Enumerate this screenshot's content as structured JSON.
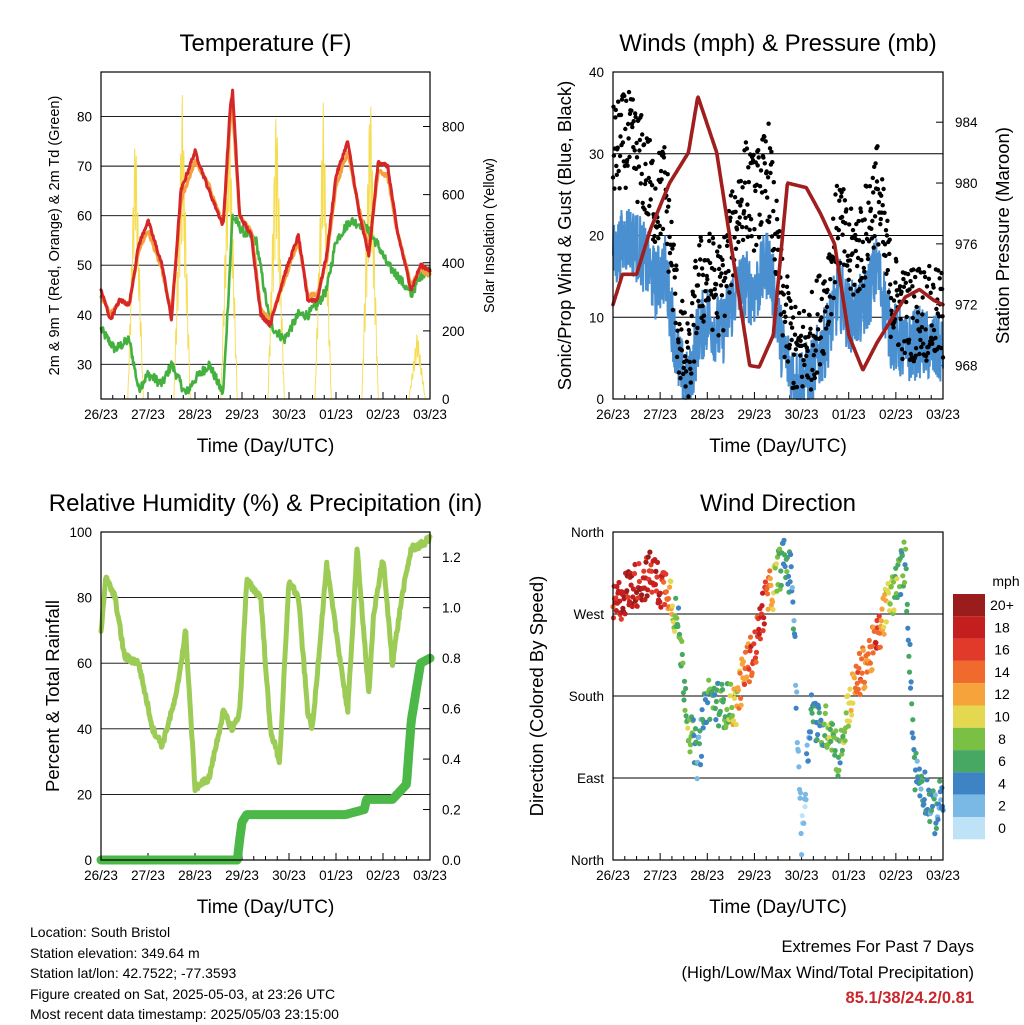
{
  "x_ticks": [
    "26/23",
    "27/23",
    "28/23",
    "29/23",
    "30/23",
    "01/23",
    "02/23",
    "03/23"
  ],
  "colors": {
    "temp2m": "#d62728",
    "temp9m": "#f5a040",
    "dewpoint": "#44b040",
    "solar": "#f6dc50",
    "wind": "#4a90d0",
    "gust": "#000000",
    "pressure": "#a01e1e",
    "rh": "#9ccc55",
    "precip": "#4bb848",
    "extremes": "#c8282d"
  },
  "chart_data": [
    {
      "type": "line",
      "title": "Temperature (F)",
      "xlabel": "Time (Day/UTC)",
      "ylabel": "2m & 9m T (Red, Orange) & 2m Td (Green)",
      "y2label": "Solar Insolation (Yellow)",
      "ylim": [
        23,
        89
      ],
      "y2lim": [
        0,
        960
      ],
      "yticks": [
        30,
        40,
        50,
        60,
        70,
        80
      ],
      "y2ticks": [
        0,
        200,
        400,
        600,
        800
      ],
      "grid": true,
      "series": [
        {
          "name": "2m T",
          "axis": "left",
          "x": [
            0,
            0.2,
            0.4,
            0.6,
            0.8,
            1.0,
            1.3,
            1.5,
            1.7,
            2.0,
            2.3,
            2.6,
            2.75,
            2.8,
            2.95,
            3.2,
            3.4,
            3.6,
            3.9,
            4.2,
            4.4,
            4.6,
            4.8,
            5.0,
            5.25,
            5.5,
            5.7,
            5.9,
            6.1,
            6.3,
            6.6,
            6.8,
            7.0
          ],
          "values": [
            45,
            39,
            43,
            42,
            54,
            59,
            50,
            39,
            65,
            73,
            65,
            58,
            82,
            85,
            60,
            56,
            40,
            38,
            48,
            56,
            43,
            43,
            52,
            68,
            75,
            60,
            52,
            71,
            70,
            57,
            45,
            50,
            49
          ]
        },
        {
          "name": "9m T",
          "axis": "left",
          "x": [
            0,
            0.2,
            0.4,
            0.6,
            0.8,
            1.0,
            1.3,
            1.5,
            1.7,
            2.0,
            2.3,
            2.6,
            2.75,
            2.8,
            2.95,
            3.2,
            3.4,
            3.6,
            3.9,
            4.2,
            4.4,
            4.6,
            4.8,
            5.0,
            5.25,
            5.5,
            5.7,
            5.9,
            6.1,
            6.3,
            6.6,
            6.8,
            7.0
          ],
          "values": [
            44,
            40,
            43,
            42,
            53,
            57,
            49,
            40,
            63,
            71,
            66,
            58,
            79,
            82,
            60,
            57,
            41,
            39,
            47,
            55,
            44,
            44,
            51,
            66,
            73,
            61,
            53,
            69,
            68,
            57,
            46,
            49,
            48
          ]
        },
        {
          "name": "2m Td",
          "axis": "left",
          "x": [
            0,
            0.3,
            0.6,
            0.8,
            1.0,
            1.3,
            1.5,
            1.8,
            2.0,
            2.3,
            2.6,
            2.8,
            3.0,
            3.3,
            3.6,
            3.9,
            4.2,
            4.4,
            4.6,
            4.8,
            5.0,
            5.3,
            5.6,
            5.9,
            6.1,
            6.3,
            6.6,
            6.8,
            7.0
          ],
          "values": [
            37,
            33,
            35,
            25,
            28,
            26,
            30,
            24,
            27,
            30,
            24,
            60,
            57,
            55,
            38,
            35,
            40,
            40,
            42,
            45,
            55,
            59,
            58,
            54,
            50,
            48,
            44,
            48,
            49
          ]
        },
        {
          "name": "Solar Insolation",
          "axis": "right",
          "x": [
            0.57,
            0.73,
            0.9,
            1.55,
            1.73,
            1.9,
            2.55,
            2.73,
            2.9,
            3.55,
            3.73,
            3.9,
            4.55,
            4.73,
            4.9,
            5.55,
            5.73,
            5.9,
            6.55,
            6.73,
            6.9
          ],
          "values": [
            0,
            810,
            0,
            0,
            900,
            0,
            0,
            880,
            0,
            0,
            880,
            0,
            0,
            870,
            0,
            0,
            920,
            0,
            0,
            200,
            0
          ]
        }
      ]
    },
    {
      "type": "line",
      "title": "Winds (mph) & Pressure (mb)",
      "xlabel": "Time (Day/UTC)",
      "ylabel": "Sonic/Prop Wind & Gust (Blue, Black)",
      "y2label": "Station Pressure (Maroon)",
      "ylim": [
        0,
        40
      ],
      "y2lim": [
        965.8,
        987.3
      ],
      "yticks": [
        0,
        10,
        20,
        30,
        40
      ],
      "y2ticks": [
        968,
        972,
        976,
        980,
        984
      ],
      "grid": true,
      "series": [
        {
          "name": "Wind",
          "axis": "left",
          "x": [
            0,
            0.3,
            0.6,
            0.9,
            1.1,
            1.4,
            1.6,
            1.8,
            2.0,
            2.3,
            2.6,
            2.8,
            3.0,
            3.3,
            3.6,
            3.9,
            4.2,
            4.5,
            4.8,
            5.0,
            5.3,
            5.6,
            5.9,
            6.2,
            6.5,
            6.8,
            7.0
          ],
          "values": [
            17,
            20,
            18,
            14,
            16,
            4,
            1,
            8,
            10,
            8,
            13,
            14,
            13,
            17,
            6,
            2,
            3,
            7,
            13,
            10,
            11,
            16,
            8,
            6,
            7,
            6,
            6
          ]
        },
        {
          "name": "Gust",
          "axis": "left",
          "x": [
            0,
            0.3,
            0.6,
            0.9,
            1.1,
            1.4,
            1.6,
            1.8,
            2.0,
            2.3,
            2.6,
            2.8,
            3.0,
            3.3,
            3.6,
            3.9,
            4.2,
            4.5,
            4.8,
            5.0,
            5.3,
            5.6,
            5.9,
            6.2,
            6.5,
            6.8,
            7.0
          ],
          "values": [
            30,
            32,
            29,
            24,
            26,
            8,
            3,
            14,
            15,
            13,
            22,
            26,
            24,
            28,
            11,
            5,
            7,
            12,
            22,
            17,
            19,
            26,
            13,
            10,
            11,
            10,
            10
          ]
        },
        {
          "name": "Pressure",
          "axis": "right",
          "x": [
            0,
            0.2,
            0.5,
            0.8,
            1.2,
            1.6,
            1.8,
            2.2,
            2.6,
            2.9,
            3.1,
            3.4,
            3.7,
            4.1,
            4.4,
            4.7,
            5.0,
            5.3,
            5.6,
            5.9,
            6.2,
            6.5,
            6.8,
            7.0
          ],
          "values": [
            972,
            974,
            974,
            977,
            980,
            982,
            985.7,
            982,
            974,
            968,
            967.9,
            970,
            980,
            979.7,
            978,
            976,
            970,
            967.7,
            969.5,
            971,
            972.5,
            973,
            972.3,
            972
          ]
        }
      ]
    },
    {
      "type": "line",
      "title": "Relative Humidity (%) & Precipitation (in)",
      "xlabel": "Time (Day/UTC)",
      "ylabel": "Percent & Total Rainfall",
      "ylim": [
        0,
        100
      ],
      "y2lim": [
        0,
        1.3
      ],
      "yticks": [
        0,
        20,
        40,
        60,
        80,
        100
      ],
      "y2ticks": [
        0.0,
        0.2,
        0.4,
        0.6,
        0.8,
        1.0,
        1.2
      ],
      "grid": true,
      "series": [
        {
          "name": "Relative Humidity",
          "axis": "left",
          "x": [
            0,
            0.1,
            0.3,
            0.5,
            0.8,
            1.1,
            1.3,
            1.6,
            1.8,
            2.0,
            2.3,
            2.6,
            2.8,
            2.95,
            3.1,
            3.4,
            3.6,
            3.8,
            4.0,
            4.2,
            4.4,
            4.5,
            4.8,
            5.0,
            5.25,
            5.45,
            5.7,
            5.8,
            6.0,
            6.2,
            6.4,
            6.6,
            6.8,
            7.0
          ],
          "values": [
            70,
            86,
            80,
            62,
            60,
            40,
            35,
            50,
            70,
            22,
            25,
            45,
            40,
            45,
            85,
            80,
            40,
            30,
            85,
            80,
            45,
            40,
            90,
            70,
            45,
            95,
            50,
            75,
            92,
            60,
            80,
            95,
            96,
            98
          ]
        },
        {
          "name": "Total Precipitation",
          "axis": "right",
          "x": [
            0,
            2.9,
            2.95,
            3.0,
            3.1,
            5.2,
            5.6,
            5.65,
            6.2,
            6.5,
            6.6,
            6.8,
            7.0
          ],
          "values": [
            0,
            0,
            0.08,
            0.15,
            0.18,
            0.18,
            0.2,
            0.24,
            0.24,
            0.3,
            0.55,
            0.78,
            0.8
          ]
        }
      ]
    },
    {
      "type": "scatter",
      "title": "Wind Direction",
      "xlabel": "Time (Day/UTC)",
      "ylabel": "Direction (Colored By Speed)",
      "ylim": [
        0,
        360
      ],
      "ytick_labels": [
        "North",
        "East",
        "South",
        "West",
        "North"
      ],
      "yticks": [
        0,
        90,
        180,
        270,
        360
      ],
      "grid": true,
      "colorbar": {
        "title": "mph",
        "labels": [
          "20+",
          "18",
          "16",
          "14",
          "12",
          "10",
          "8",
          "6",
          "4",
          "2",
          "0"
        ],
        "colors": [
          "#9a1c1c",
          "#c41e1e",
          "#e23a2a",
          "#f06a2e",
          "#f6a33c",
          "#e3d850",
          "#79c045",
          "#46a862",
          "#3e84c4",
          "#7ab8e6",
          "#bfe3f6"
        ]
      },
      "series": [
        {
          "name": "Direction",
          "x": [
            0,
            0.2,
            0.4,
            0.6,
            0.8,
            1.0,
            1.2,
            1.4,
            1.6,
            1.8,
            2.0,
            2.3,
            2.6,
            2.8,
            3.0,
            3.2,
            3.4,
            3.6,
            3.8,
            4.0,
            4.2,
            4.4,
            4.6,
            4.8,
            5.0,
            5.2,
            5.4,
            5.6,
            5.8,
            6.0,
            6.2,
            6.4,
            6.6,
            6.8,
            7.0
          ],
          "values": [
            275,
            290,
            300,
            305,
            315,
            300,
            300,
            250,
            150,
            110,
            180,
            170,
            170,
            210,
            230,
            280,
            300,
            330,
            310,
            20,
            170,
            140,
            150,
            110,
            170,
            200,
            220,
            240,
            280,
            300,
            330,
            100,
            80,
            50,
            70
          ],
          "speeds": [
            16,
            18,
            18,
            18,
            18,
            18,
            12,
            6,
            8,
            4,
            6,
            6,
            10,
            14,
            16,
            18,
            10,
            6,
            4,
            2,
            4,
            6,
            8,
            6,
            10,
            14,
            12,
            16,
            10,
            8,
            6,
            4,
            4,
            4,
            4
          ]
        }
      ]
    }
  ],
  "footer": {
    "location": "Location: South Bristol",
    "elevation": "Station elevation: 349.64 m",
    "latlon": "Station lat/lon: 42.7522; -77.3593",
    "created": "Figure created on Sat, 2025-05-03, at 23:26 UTC",
    "recent": "Most recent data timestamp: 2025/05/03 23:15:00"
  },
  "extremes": {
    "title": "Extremes For Past 7 Days",
    "subtitle": "(High/Low/Max Wind/Total Precipitation)",
    "values": "85.1/38/24.2/0.81"
  }
}
